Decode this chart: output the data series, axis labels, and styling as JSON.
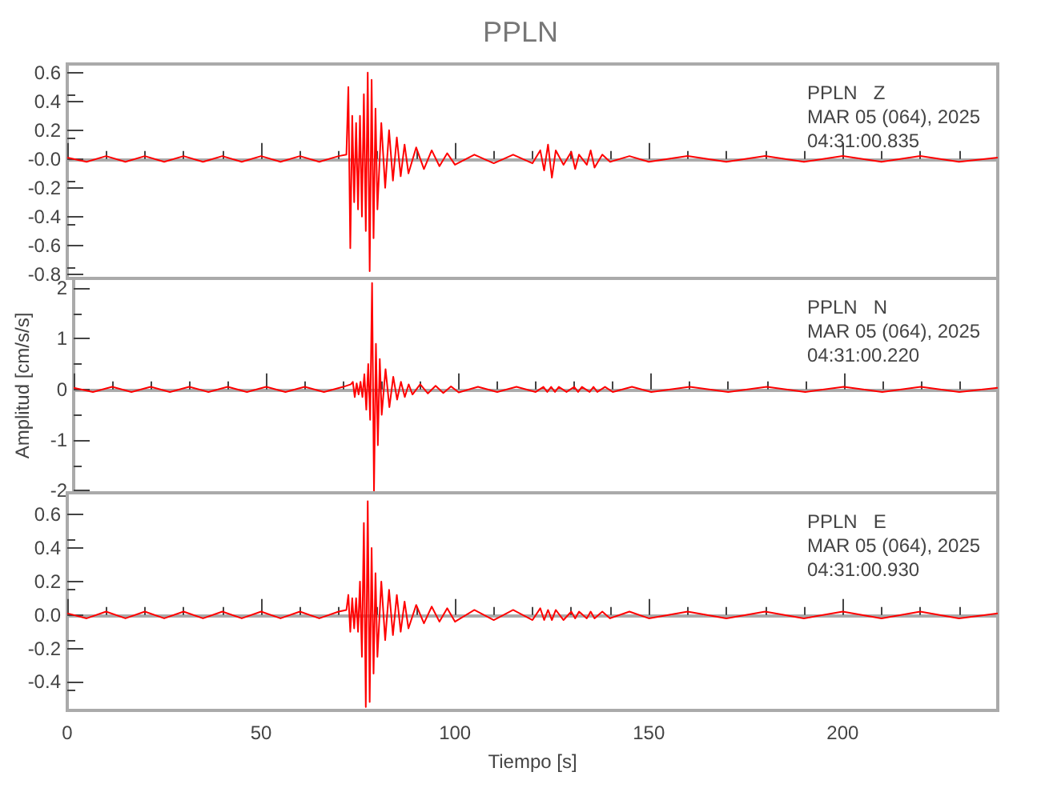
{
  "chart_data": [
    {
      "type": "line",
      "title": "PPLN",
      "tick_labels": "y",
      "annotations": [
        "PPLN   Z",
        "MAR 05 (064), 2025",
        "04:31:00.835"
      ],
      "xlim": [
        0,
        240
      ],
      "xticks": [
        0,
        50,
        100,
        150,
        200
      ],
      "ylim": [
        -0.83,
        0.66
      ],
      "yticks": [
        0.6,
        0.4,
        0.2,
        {
          "value": 0,
          "label": "-0.0"
        },
        -0.2,
        -0.4,
        -0.6,
        -0.8
      ],
      "x": [
        0,
        5,
        10,
        15,
        20,
        25,
        30,
        35,
        40,
        45,
        50,
        55,
        60,
        65,
        70,
        72,
        72.5,
        73,
        73.5,
        74,
        74.5,
        75,
        75.5,
        76,
        76.5,
        77,
        77.5,
        78,
        78.5,
        79,
        79.5,
        80,
        81,
        82,
        83,
        84,
        85,
        86,
        87,
        88,
        90,
        92,
        94,
        96,
        98,
        100,
        105,
        110,
        115,
        120,
        122,
        123,
        124,
        125,
        126,
        128,
        130,
        131,
        132,
        134,
        135,
        136,
        138,
        140,
        145,
        150,
        160,
        170,
        180,
        190,
        200,
        210,
        220,
        230,
        240
      ],
      "series": [
        {
          "color": "#ff0000",
          "values": [
            0.01,
            -0.02,
            0.02,
            -0.02,
            0.02,
            -0.02,
            0.02,
            -0.02,
            0.02,
            -0.02,
            0.02,
            -0.02,
            0.02,
            -0.02,
            0.02,
            0.03,
            0.5,
            -0.62,
            0.3,
            -0.3,
            0.25,
            -0.35,
            0.3,
            -0.4,
            0.45,
            -0.5,
            0.6,
            -0.78,
            0.55,
            -0.55,
            0.35,
            -0.35,
            0.25,
            -0.2,
            0.2,
            -0.15,
            0.15,
            -0.12,
            0.1,
            -0.1,
            0.08,
            -0.07,
            0.06,
            -0.05,
            0.04,
            -0.04,
            0.03,
            -0.03,
            0.03,
            -0.03,
            0.06,
            -0.08,
            0.1,
            -0.13,
            0.06,
            -0.04,
            0.05,
            -0.07,
            0.03,
            -0.04,
            0.06,
            -0.06,
            0.03,
            -0.02,
            0.02,
            -0.02,
            0.02,
            -0.02,
            0.02,
            -0.02,
            0.02,
            -0.02,
            0.02,
            -0.02,
            0.01
          ]
        }
      ]
    },
    {
      "type": "line",
      "tick_labels": "y",
      "ylabel": "Amplitud [cm/s/s]",
      "annotations": [
        "PPLN   N",
        "MAR 05 (064), 2025",
        "04:31:00.220"
      ],
      "xlim": [
        0,
        240
      ],
      "xticks": [
        0,
        50,
        100,
        150,
        200
      ],
      "ylim": [
        -2.04,
        2.19
      ],
      "yticks": [
        2,
        1,
        0,
        -1,
        -2
      ],
      "x": [
        0,
        5,
        10,
        15,
        20,
        25,
        30,
        35,
        40,
        45,
        50,
        55,
        60,
        65,
        70,
        72,
        72.5,
        73,
        73.5,
        74,
        74.5,
        75,
        75.5,
        76,
        76.5,
        77,
        77.5,
        78,
        78.5,
        79,
        79.5,
        80,
        81,
        82,
        83,
        84,
        85,
        86,
        87,
        88,
        90,
        92,
        94,
        96,
        98,
        100,
        105,
        110,
        115,
        120,
        122,
        123,
        124,
        125,
        126,
        128,
        130,
        131,
        132,
        134,
        135,
        136,
        138,
        140,
        145,
        150,
        160,
        170,
        180,
        190,
        200,
        210,
        220,
        230,
        240
      ],
      "series": [
        {
          "color": "#ff0000",
          "values": [
            0.03,
            -0.05,
            0.05,
            -0.05,
            0.05,
            -0.05,
            0.05,
            -0.05,
            0.05,
            -0.05,
            0.05,
            -0.05,
            0.05,
            -0.05,
            0.05,
            0.1,
            0.15,
            -0.15,
            0.12,
            -0.1,
            0.15,
            -0.15,
            0.3,
            -0.4,
            0.5,
            -0.6,
            2.1,
            -2.0,
            0.9,
            -1.1,
            0.6,
            -0.5,
            0.4,
            -0.35,
            0.25,
            -0.2,
            0.15,
            -0.15,
            0.1,
            -0.1,
            0.1,
            -0.08,
            0.07,
            -0.07,
            0.06,
            -0.06,
            0.05,
            -0.05,
            0.05,
            -0.05,
            0.05,
            -0.05,
            0.05,
            -0.05,
            0.05,
            -0.05,
            0.05,
            -0.05,
            0.05,
            -0.05,
            0.05,
            -0.05,
            0.05,
            -0.05,
            0.05,
            -0.05,
            0.05,
            -0.05,
            0.05,
            -0.05,
            0.05,
            -0.05,
            0.05,
            -0.05,
            0.03
          ]
        }
      ]
    },
    {
      "type": "line",
      "xlabel": "Tiempo [s]",
      "annotations": [
        "PPLN   E",
        "MAR 05 (064), 2025",
        "04:31:00.930"
      ],
      "xlim": [
        0,
        240
      ],
      "xticks": [
        0,
        50,
        100,
        150,
        200
      ],
      "ylim": [
        -0.57,
        0.73
      ],
      "yticks": [
        0.6,
        0.4,
        0.2,
        {
          "value": 0,
          "label": "0.0"
        },
        -0.2,
        -0.4
      ],
      "x": [
        0,
        5,
        10,
        15,
        20,
        25,
        30,
        35,
        40,
        45,
        50,
        55,
        60,
        65,
        70,
        72,
        72.5,
        73,
        73.5,
        74,
        74.5,
        75,
        75.5,
        76,
        76.5,
        77,
        77.5,
        78,
        78.5,
        79,
        79.5,
        80,
        81,
        82,
        83,
        84,
        85,
        86,
        87,
        88,
        90,
        92,
        94,
        96,
        98,
        100,
        105,
        110,
        115,
        120,
        122,
        123,
        124,
        125,
        126,
        128,
        130,
        131,
        132,
        134,
        135,
        136,
        138,
        140,
        145,
        150,
        160,
        170,
        180,
        190,
        200,
        210,
        220,
        230,
        240
      ],
      "series": [
        {
          "color": "#ff0000",
          "values": [
            0.01,
            -0.02,
            0.02,
            -0.02,
            0.02,
            -0.02,
            0.02,
            -0.02,
            0.02,
            -0.02,
            0.02,
            -0.02,
            0.02,
            -0.02,
            0.02,
            0.03,
            0.12,
            -0.1,
            0.1,
            -0.08,
            0.1,
            -0.1,
            0.2,
            -0.25,
            0.55,
            -0.55,
            0.68,
            -0.52,
            0.4,
            -0.35,
            0.25,
            -0.25,
            0.2,
            -0.15,
            0.15,
            -0.12,
            0.12,
            -0.1,
            0.08,
            -0.08,
            0.06,
            -0.05,
            0.05,
            -0.04,
            0.04,
            -0.04,
            0.03,
            -0.03,
            0.03,
            -0.03,
            0.04,
            -0.03,
            0.03,
            -0.03,
            0.03,
            -0.03,
            0.02,
            -0.02,
            0.02,
            -0.02,
            0.02,
            -0.02,
            0.02,
            -0.02,
            0.02,
            -0.02,
            0.02,
            -0.02,
            0.02,
            -0.02,
            0.02,
            -0.02,
            0.02,
            -0.02,
            0.01
          ]
        }
      ]
    }
  ]
}
